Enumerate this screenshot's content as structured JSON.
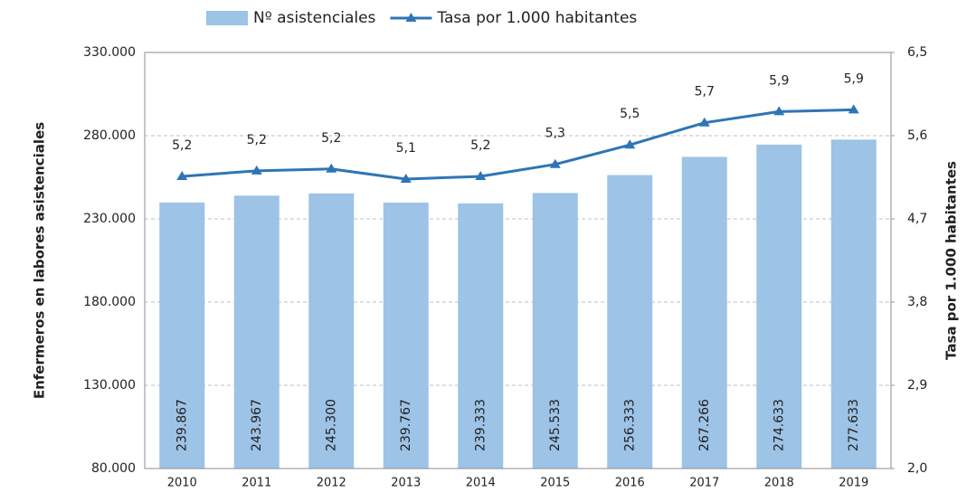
{
  "chart_data": {
    "type": "bar",
    "y_label": "Enfermeros en labores asistenciales",
    "y2_label": "Tasa por 1.000 habitantes",
    "legend": "top",
    "grid": true,
    "categories": [
      "2010",
      "2011",
      "2012",
      "2013",
      "2014",
      "2015",
      "2016",
      "2017",
      "2018",
      "2019"
    ],
    "series": [
      {
        "name": "Nº asistenciales",
        "type": "bar",
        "color": "#9dc3e6",
        "values": [
          239867,
          243967,
          245300,
          239767,
          239333,
          245533,
          256333,
          267266,
          274633,
          277633
        ],
        "value_labels": [
          "239.867",
          "243.967",
          "245.300",
          "239.767",
          "239.333",
          "245.533",
          "256.333",
          "267.266",
          "274.633",
          "277.633"
        ]
      },
      {
        "name": "Tasa por 1.000 habitantes",
        "type": "line",
        "axis": "y2",
        "color": "#2e75b6",
        "values": [
          5.16,
          5.22,
          5.24,
          5.13,
          5.16,
          5.29,
          5.5,
          5.74,
          5.86,
          5.88
        ],
        "value_labels": [
          "5,2",
          "5,2",
          "5,2",
          "5,1",
          "5,2",
          "5,3",
          "5,5",
          "5,7",
          "5,9",
          "5,9"
        ]
      }
    ],
    "ylim": [
      80000,
      330000
    ],
    "yticks": [
      {
        "value": 80000,
        "label": "80.000"
      },
      {
        "value": 130000,
        "label": "130.000"
      },
      {
        "value": 180000,
        "label": "180.000"
      },
      {
        "value": 230000,
        "label": "230.000"
      },
      {
        "value": 280000,
        "label": "280.000"
      },
      {
        "value": 330000,
        "label": "330.000"
      }
    ],
    "y2lim": [
      2.0,
      6.5
    ],
    "y2ticks": [
      {
        "value": 2.0,
        "label": "2,0"
      },
      {
        "value": 2.9,
        "label": "2,9"
      },
      {
        "value": 3.8,
        "label": "3,8"
      },
      {
        "value": 4.7,
        "label": "4,7"
      },
      {
        "value": 5.6,
        "label": "5,6"
      },
      {
        "value": 6.5,
        "label": "6,5"
      }
    ]
  }
}
